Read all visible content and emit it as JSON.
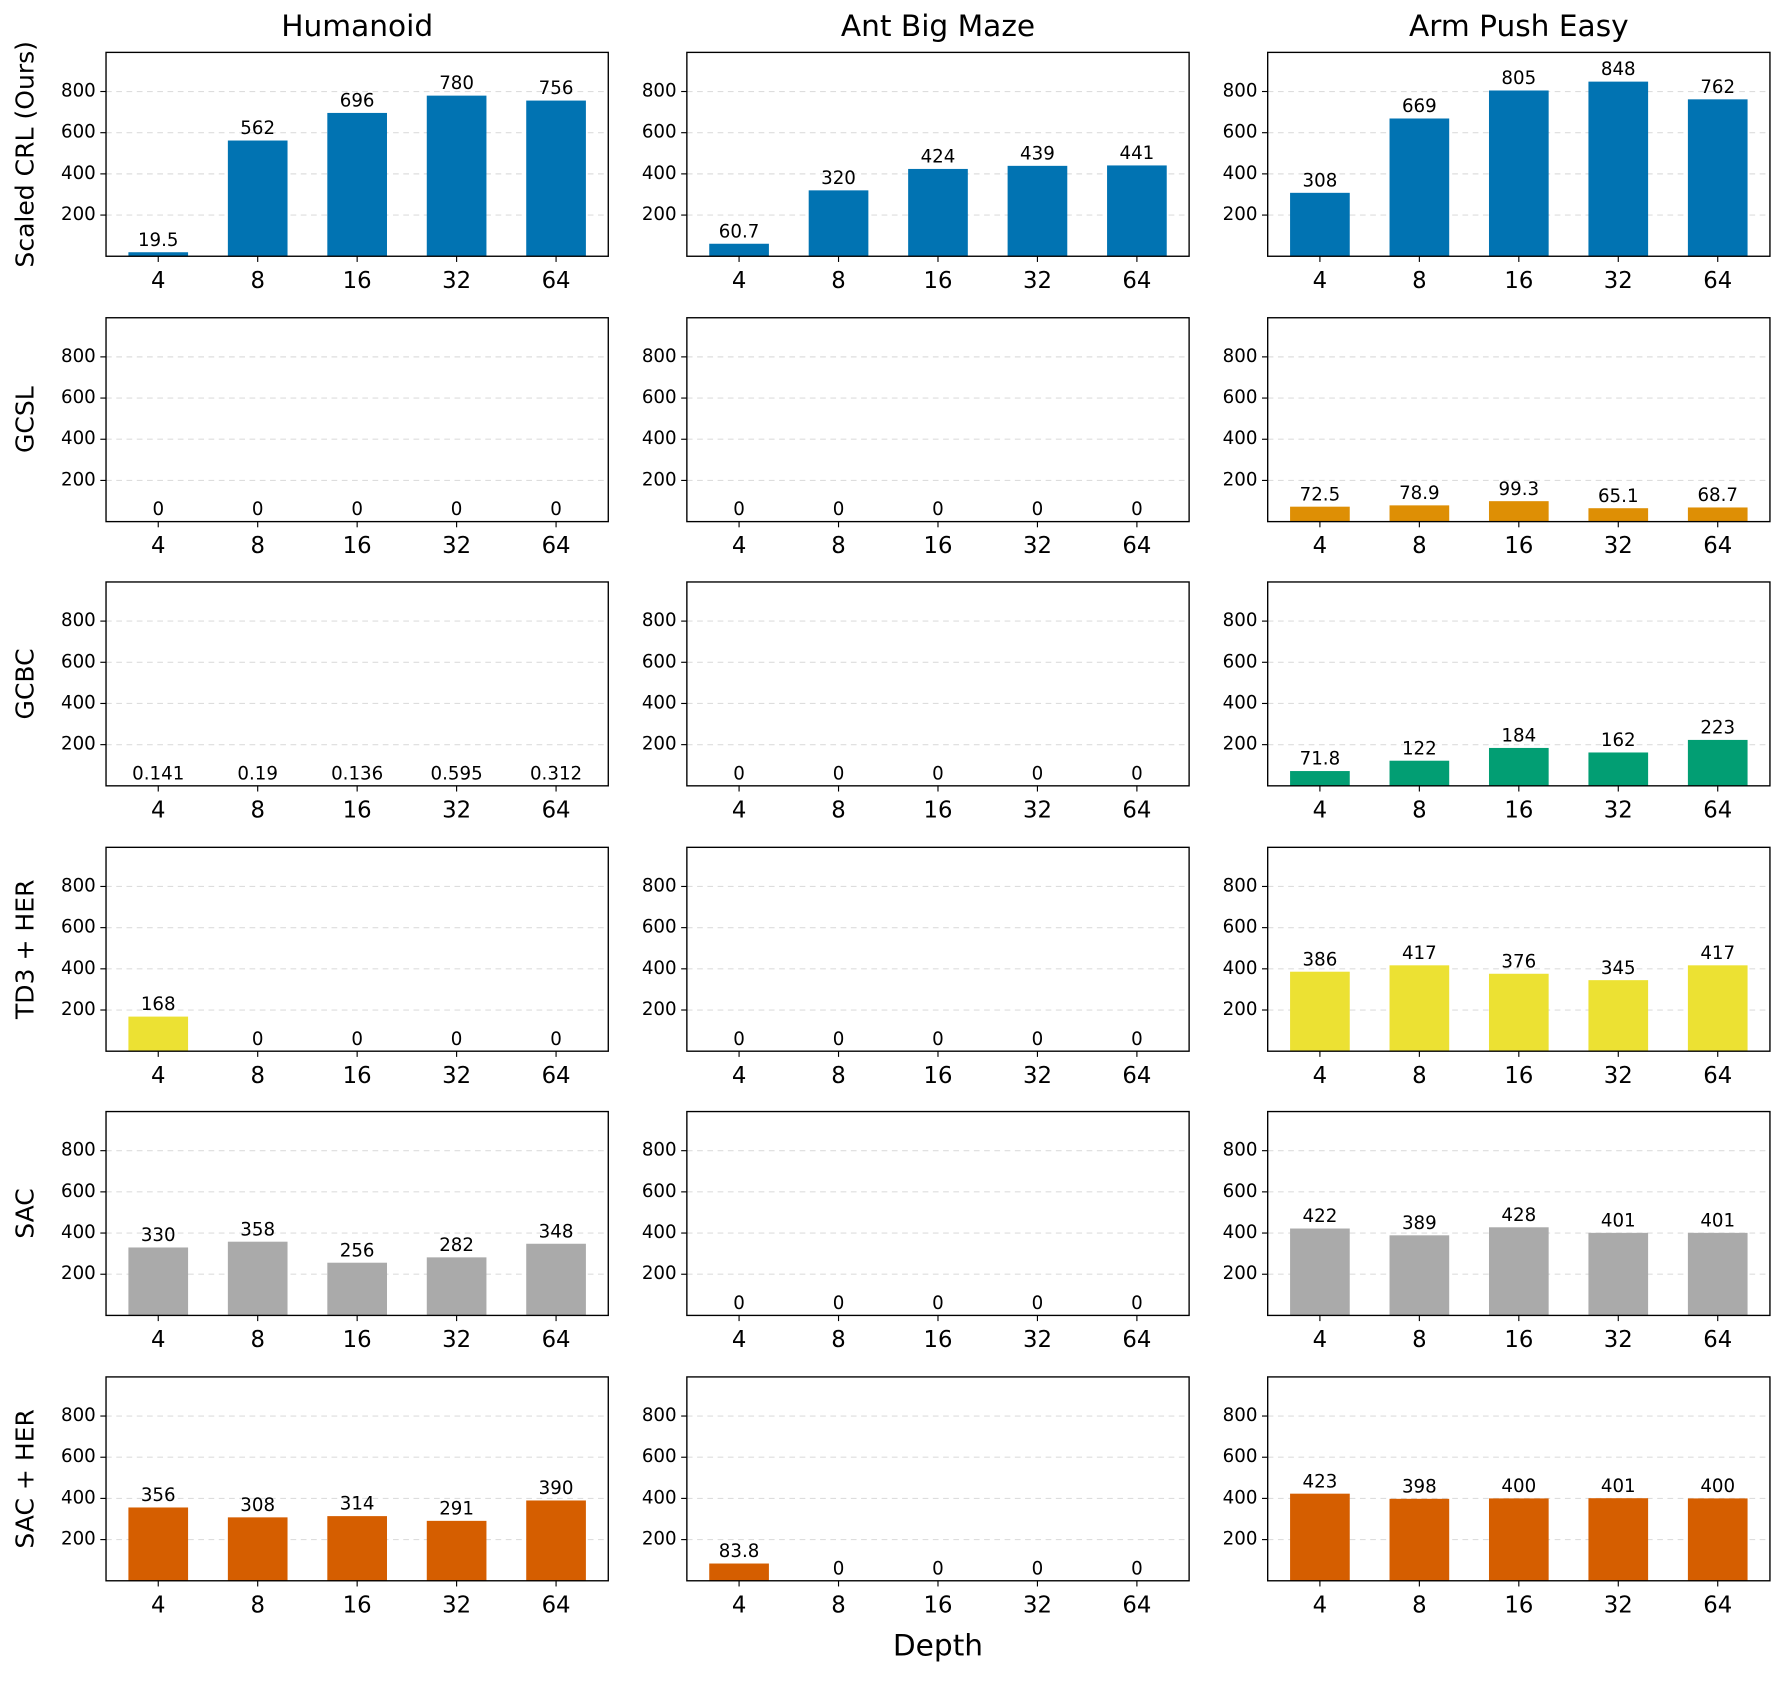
{
  "chart_data": [
    {
      "type": "bar",
      "title": "Humanoid",
      "ylabel": "Scaled CRL (Ours)",
      "categories": [
        "4",
        "8",
        "16",
        "32",
        "64"
      ],
      "values": [
        19.5,
        562,
        696,
        780,
        756
      ],
      "color": "#0173b2",
      "ylim": [
        0,
        990
      ],
      "yticks": [
        200,
        400,
        600,
        800
      ],
      "grid": true
    },
    {
      "type": "bar",
      "title": "Ant Big Maze",
      "categories": [
        "4",
        "8",
        "16",
        "32",
        "64"
      ],
      "values": [
        60.7,
        320,
        424,
        439,
        441
      ],
      "color": "#0173b2",
      "ylim": [
        0,
        990
      ],
      "yticks": [
        200,
        400,
        600,
        800
      ],
      "grid": true
    },
    {
      "type": "bar",
      "title": "Arm Push Easy",
      "categories": [
        "4",
        "8",
        "16",
        "32",
        "64"
      ],
      "values": [
        308,
        669,
        805,
        848,
        762
      ],
      "color": "#0173b2",
      "ylim": [
        0,
        990
      ],
      "yticks": [
        200,
        400,
        600,
        800
      ],
      "grid": true
    },
    {
      "type": "bar",
      "ylabel": "GCSL",
      "categories": [
        "4",
        "8",
        "16",
        "32",
        "64"
      ],
      "values": [
        0,
        0,
        0,
        0,
        0
      ],
      "color": "#de8f05",
      "ylim": [
        0,
        990
      ],
      "yticks": [
        200,
        400,
        600,
        800
      ],
      "grid": true
    },
    {
      "type": "bar",
      "categories": [
        "4",
        "8",
        "16",
        "32",
        "64"
      ],
      "values": [
        0,
        0,
        0,
        0,
        0
      ],
      "color": "#de8f05",
      "ylim": [
        0,
        990
      ],
      "yticks": [
        200,
        400,
        600,
        800
      ],
      "grid": true
    },
    {
      "type": "bar",
      "categories": [
        "4",
        "8",
        "16",
        "32",
        "64"
      ],
      "values": [
        72.5,
        78.9,
        99.3,
        65.1,
        68.7
      ],
      "color": "#de8f05",
      "ylim": [
        0,
        990
      ],
      "yticks": [
        200,
        400,
        600,
        800
      ],
      "grid": true
    },
    {
      "type": "bar",
      "ylabel": "GCBC",
      "categories": [
        "4",
        "8",
        "16",
        "32",
        "64"
      ],
      "values": [
        0.141,
        0.19,
        0.136,
        0.595,
        0.312
      ],
      "color": "#029e73",
      "ylim": [
        0,
        990
      ],
      "yticks": [
        200,
        400,
        600,
        800
      ],
      "grid": true
    },
    {
      "type": "bar",
      "categories": [
        "4",
        "8",
        "16",
        "32",
        "64"
      ],
      "values": [
        0,
        0,
        0,
        0,
        0
      ],
      "color": "#029e73",
      "ylim": [
        0,
        990
      ],
      "yticks": [
        200,
        400,
        600,
        800
      ],
      "grid": true
    },
    {
      "type": "bar",
      "categories": [
        "4",
        "8",
        "16",
        "32",
        "64"
      ],
      "values": [
        71.8,
        122,
        184,
        162,
        223
      ],
      "color": "#029e73",
      "ylim": [
        0,
        990
      ],
      "yticks": [
        200,
        400,
        600,
        800
      ],
      "grid": true
    },
    {
      "type": "bar",
      "ylabel": "TD3 + HER",
      "categories": [
        "4",
        "8",
        "16",
        "32",
        "64"
      ],
      "values": [
        168,
        0,
        0,
        0,
        0
      ],
      "color": "#ece133",
      "ylim": [
        0,
        990
      ],
      "yticks": [
        200,
        400,
        600,
        800
      ],
      "grid": true
    },
    {
      "type": "bar",
      "categories": [
        "4",
        "8",
        "16",
        "32",
        "64"
      ],
      "values": [
        0,
        0,
        0,
        0,
        0
      ],
      "color": "#ece133",
      "ylim": [
        0,
        990
      ],
      "yticks": [
        200,
        400,
        600,
        800
      ],
      "grid": true
    },
    {
      "type": "bar",
      "categories": [
        "4",
        "8",
        "16",
        "32",
        "64"
      ],
      "values": [
        386,
        417,
        376,
        345,
        417
      ],
      "color": "#ece133",
      "ylim": [
        0,
        990
      ],
      "yticks": [
        200,
        400,
        600,
        800
      ],
      "grid": true
    },
    {
      "type": "bar",
      "ylabel": "SAC",
      "categories": [
        "4",
        "8",
        "16",
        "32",
        "64"
      ],
      "values": [
        330,
        358,
        256,
        282,
        348
      ],
      "color": "#aaaaaa",
      "ylim": [
        0,
        990
      ],
      "yticks": [
        200,
        400,
        600,
        800
      ],
      "grid": true
    },
    {
      "type": "bar",
      "categories": [
        "4",
        "8",
        "16",
        "32",
        "64"
      ],
      "values": [
        0,
        0,
        0,
        0,
        0
      ],
      "color": "#aaaaaa",
      "ylim": [
        0,
        990
      ],
      "yticks": [
        200,
        400,
        600,
        800
      ],
      "grid": true
    },
    {
      "type": "bar",
      "categories": [
        "4",
        "8",
        "16",
        "32",
        "64"
      ],
      "values": [
        422,
        389,
        428,
        401,
        401
      ],
      "color": "#aaaaaa",
      "ylim": [
        0,
        990
      ],
      "yticks": [
        200,
        400,
        600,
        800
      ],
      "grid": true
    },
    {
      "type": "bar",
      "ylabel": "SAC + HER",
      "categories": [
        "4",
        "8",
        "16",
        "32",
        "64"
      ],
      "values": [
        356,
        308,
        314,
        291,
        390
      ],
      "color": "#d55e00",
      "ylim": [
        0,
        990
      ],
      "yticks": [
        200,
        400,
        600,
        800
      ],
      "grid": true
    },
    {
      "type": "bar",
      "xlabel": "Depth",
      "categories": [
        "4",
        "8",
        "16",
        "32",
        "64"
      ],
      "values": [
        83.8,
        0,
        0,
        0,
        0
      ],
      "color": "#d55e00",
      "ylim": [
        0,
        990
      ],
      "yticks": [
        200,
        400,
        600,
        800
      ],
      "grid": true
    },
    {
      "type": "bar",
      "categories": [
        "4",
        "8",
        "16",
        "32",
        "64"
      ],
      "values": [
        423,
        398,
        400,
        401,
        400
      ],
      "color": "#d55e00",
      "ylim": [
        0,
        990
      ],
      "yticks": [
        200,
        400,
        600,
        800
      ],
      "grid": true
    }
  ]
}
